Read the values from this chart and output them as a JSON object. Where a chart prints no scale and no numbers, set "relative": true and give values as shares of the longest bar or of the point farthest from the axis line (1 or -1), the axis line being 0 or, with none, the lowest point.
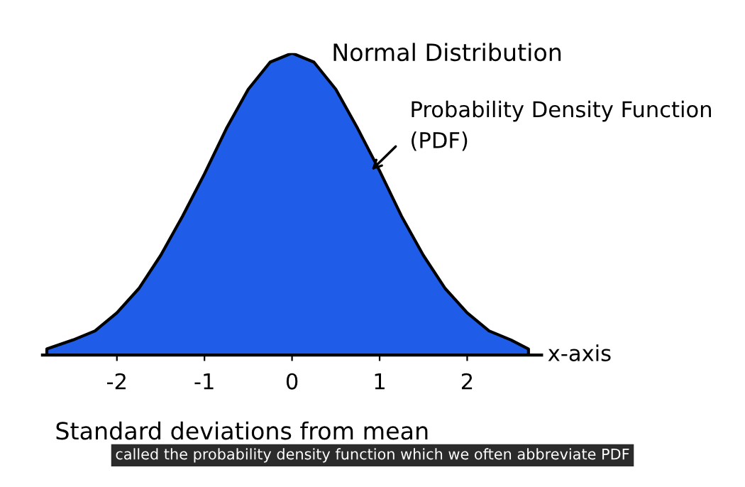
{
  "chart_data": {
    "type": "area",
    "title": "Normal Distribution",
    "xlabel": "Standard deviations from mean",
    "relative": true,
    "x": [
      -2.8,
      -2.5,
      -2.25,
      -2,
      -1.75,
      -1.5,
      -1.25,
      -1,
      -0.75,
      -0.5,
      -0.25,
      0,
      0.25,
      0.5,
      0.75,
      1,
      1.25,
      1.5,
      1.75,
      2,
      2.25,
      2.5,
      2.7
    ],
    "series": [
      {
        "color": "#1f5ce8",
        "values": [
          0.02,
          0.05,
          0.08,
          0.14,
          0.22,
          0.33,
          0.46,
          0.6,
          0.75,
          0.88,
          0.97,
          1,
          0.97,
          0.88,
          0.75,
          0.61,
          0.46,
          0.33,
          0.22,
          0.14,
          0.08,
          0.05,
          0.02
        ]
      }
    ],
    "xlim": [
      -2.85,
      2.85
    ],
    "xticks": [
      -2,
      -1,
      0,
      1,
      2
    ],
    "grid": false,
    "annotations": [
      "Probability Density Function\n(PDF)",
      "x-axis",
      "called the probability density function which we often abbreviate PDF"
    ]
  }
}
